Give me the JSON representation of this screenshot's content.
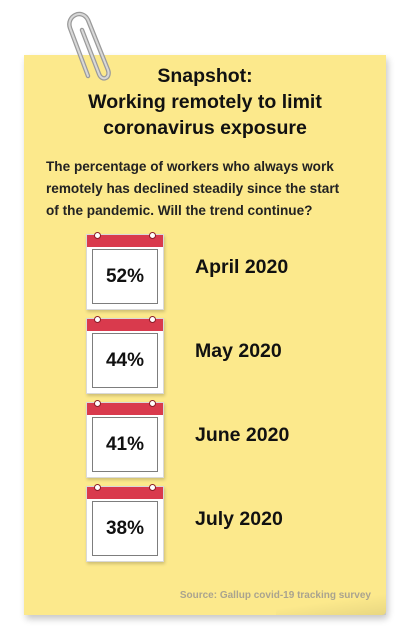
{
  "title_line1": "Snapshot:",
  "title_line2": "Working remotely to limit",
  "title_line3": "coronavirus exposure",
  "subtitle_line1": "The percentage of workers who always work",
  "subtitle_line2": "remotely has declined steadily since the start",
  "subtitle_line3": "of the pandemic. Will the trend continue?",
  "entries": [
    {
      "percent": "52%",
      "month": "April 2020"
    },
    {
      "percent": "44%",
      "month": "May 2020"
    },
    {
      "percent": "41%",
      "month": "June 2020"
    },
    {
      "percent": "38%",
      "month": "July 2020"
    }
  ],
  "source": "Source: Gallup covid-19 tracking survey",
  "colors": {
    "note_background": "#fce98c",
    "calendar_header": "#d93a4d",
    "source_text": "#a9a38f"
  },
  "icons": [
    "paperclip-icon",
    "calendar-icon"
  ]
}
